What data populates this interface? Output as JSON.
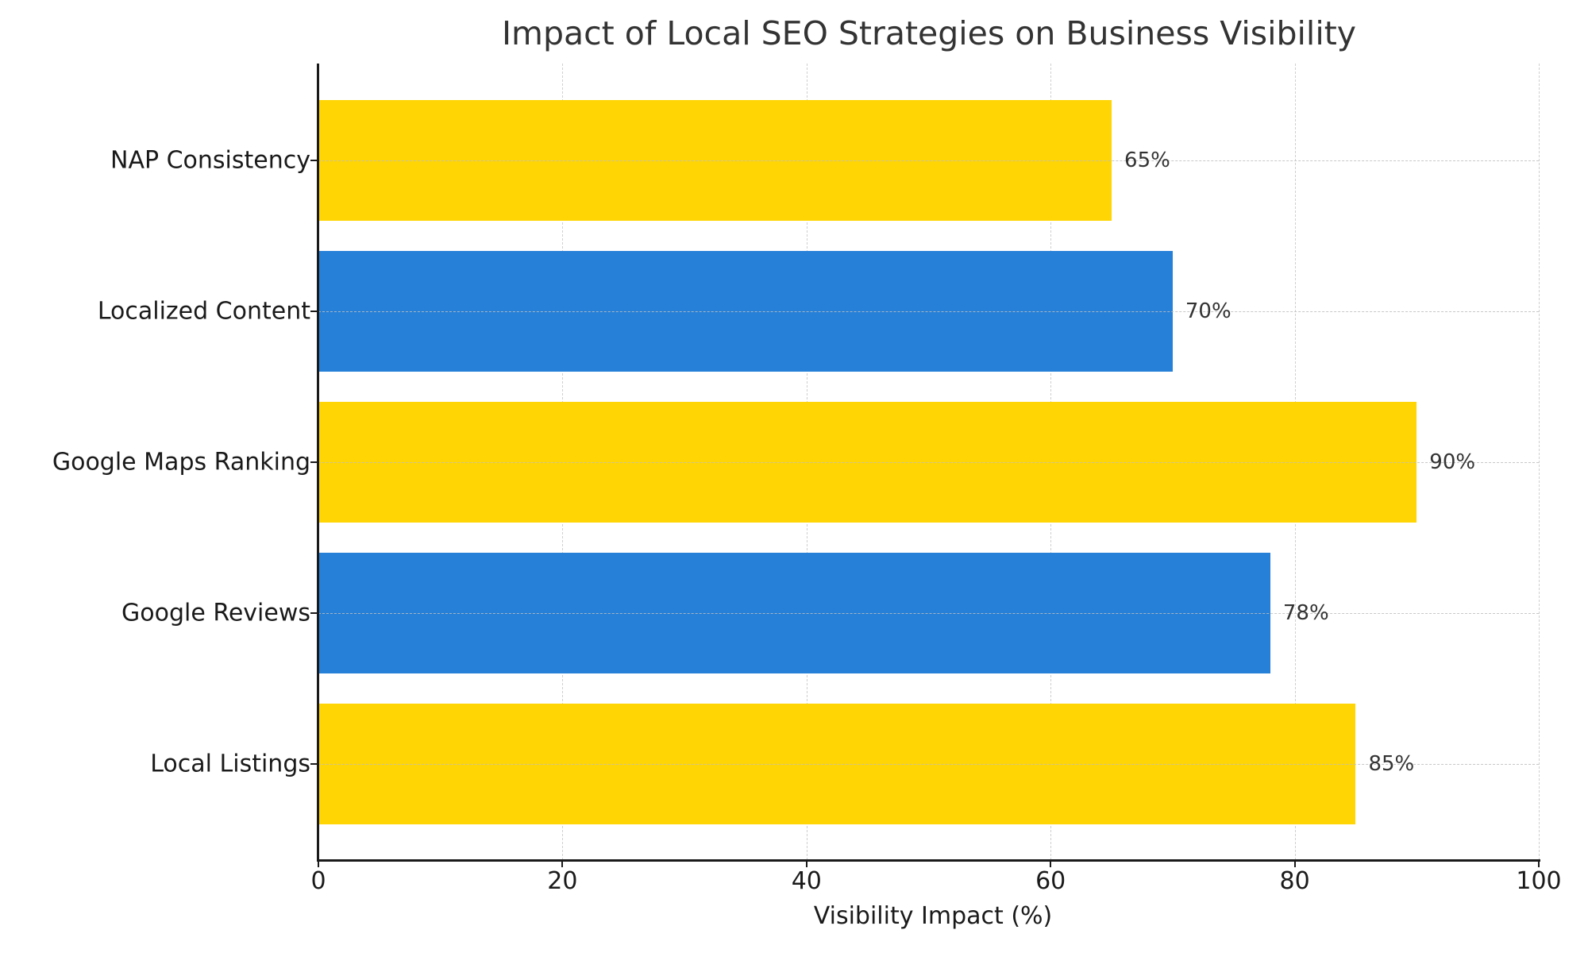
{
  "chart_data": {
    "type": "bar",
    "orientation": "horizontal",
    "title": "Impact of Local SEO Strategies on Business Visibility",
    "xlabel": "Visibility Impact (%)",
    "ylabel": "",
    "xlim": [
      0,
      100
    ],
    "xticks": [
      "0",
      "20",
      "40",
      "60",
      "80",
      "100"
    ],
    "grid": true,
    "categories": [
      "Local Listings",
      "Google Reviews",
      "Google Maps Ranking",
      "Localized Content",
      "NAP Consistency"
    ],
    "values": [
      85,
      78,
      90,
      70,
      65
    ],
    "value_labels": [
      "85%",
      "78%",
      "90%",
      "70%",
      "65%"
    ],
    "colors": [
      "#FFD504",
      "#2680D8",
      "#FFD504",
      "#2680D8",
      "#FFD504"
    ]
  }
}
